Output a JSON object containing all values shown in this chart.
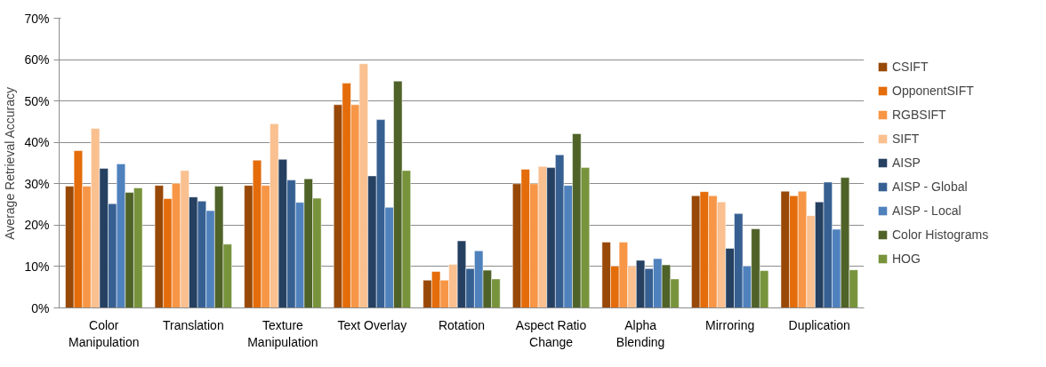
{
  "chart_data": {
    "type": "bar",
    "ylabel": "Average Retrieval Accuracy",
    "categories": [
      "Color\nManipulation",
      "Translation",
      "Texture\nManipulation",
      "Text Overlay",
      "Rotation",
      "Aspect Ratio\nChange",
      "Alpha\nBlending",
      "Mirroring",
      "Duplication"
    ],
    "series": [
      {
        "name": "CSIFT",
        "color": "#984807",
        "values": [
          29.4,
          29.6,
          29.6,
          49.1,
          6.7,
          30.0,
          15.9,
          27.1,
          28.2
        ]
      },
      {
        "name": "OpponentSIFT",
        "color": "#e46c0a",
        "values": [
          38.0,
          26.4,
          35.7,
          54.3,
          8.8,
          33.5,
          10.1,
          28.1,
          27.1
        ]
      },
      {
        "name": "RGBSIFT",
        "color": "#f79646",
        "values": [
          29.4,
          30.1,
          29.6,
          49.1,
          6.7,
          30.0,
          15.9,
          27.1,
          28.2
        ]
      },
      {
        "name": "SIFT",
        "color": "#fac090",
        "values": [
          43.4,
          33.2,
          44.5,
          59.0,
          10.5,
          34.2,
          10.1,
          25.6,
          22.3
        ]
      },
      {
        "name": "AISP",
        "color": "#254061",
        "values": [
          33.7,
          26.8,
          35.9,
          31.9,
          16.2,
          33.9,
          11.5,
          14.4,
          25.6
        ]
      },
      {
        "name": "AISP - Global",
        "color": "#376092",
        "values": [
          25.2,
          25.8,
          30.9,
          45.5,
          9.5,
          37.0,
          9.5,
          22.8,
          30.4
        ]
      },
      {
        "name": "AISP - Local",
        "color": "#4f81bd",
        "values": [
          34.8,
          23.5,
          25.5,
          24.3,
          13.8,
          29.6,
          11.9,
          10.1,
          19.0
        ]
      },
      {
        "name": "Color Histograms",
        "color": "#4f6228",
        "values": [
          27.9,
          29.4,
          31.2,
          54.8,
          9.1,
          42.1,
          10.4,
          19.1,
          31.5
        ]
      },
      {
        "name": "HOG",
        "color": "#77933c",
        "values": [
          29.0,
          15.4,
          26.5,
          33.2,
          7.0,
          33.9,
          7.0,
          9.0,
          9.2
        ]
      }
    ],
    "ylim": [
      0,
      70
    ],
    "yticks": [
      {
        "value": 0,
        "label": "0%"
      },
      {
        "value": 10,
        "label": "10%"
      },
      {
        "value": 20,
        "label": "20%"
      },
      {
        "value": 30,
        "label": "30%"
      },
      {
        "value": 40,
        "label": "40%"
      },
      {
        "value": 50,
        "label": "50%"
      },
      {
        "value": 60,
        "label": "60%"
      },
      {
        "value": 70,
        "label": "70%"
      }
    ],
    "grid": "y",
    "legend": "right"
  }
}
